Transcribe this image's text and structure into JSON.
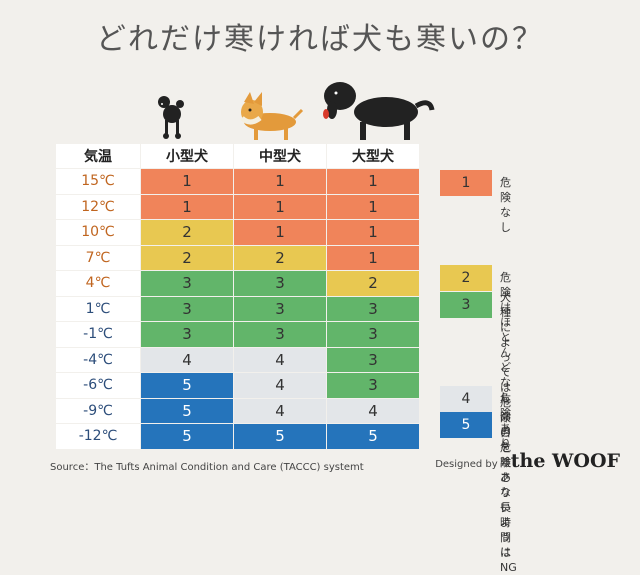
{
  "title": "どれだけ寒ければ犬も寒いの？",
  "colors": {
    "1": "#f0845a",
    "2": "#e8c851",
    "3": "#62b56a",
    "4": "#e3e6e9",
    "5": "#2574bb",
    "temp_warm": "#c0651f",
    "temp_cold": "#2c4d7a"
  },
  "chart_data": {
    "type": "table",
    "columns": [
      "気温",
      "小型犬",
      "中型犬",
      "大型犬"
    ],
    "rows": [
      {
        "temp": "15℃",
        "values": [
          1,
          1,
          1
        ]
      },
      {
        "temp": "12℃",
        "values": [
          1,
          1,
          1
        ]
      },
      {
        "temp": "10℃",
        "values": [
          2,
          1,
          1
        ]
      },
      {
        "temp": "7℃",
        "values": [
          2,
          2,
          1
        ]
      },
      {
        "temp": "4℃",
        "values": [
          3,
          3,
          2
        ]
      },
      {
        "temp": "1℃",
        "values": [
          3,
          3,
          3
        ]
      },
      {
        "temp": "-1℃",
        "values": [
          3,
          3,
          3
        ]
      },
      {
        "temp": "-4℃",
        "values": [
          4,
          4,
          3
        ]
      },
      {
        "temp": "-6℃",
        "values": [
          5,
          4,
          3
        ]
      },
      {
        "temp": "-9℃",
        "values": [
          5,
          4,
          4
        ]
      },
      {
        "temp": "-12℃",
        "values": [
          5,
          5,
          5
        ]
      }
    ]
  },
  "legend": [
    {
      "level": "1",
      "text": "危険なし"
    },
    {
      "level": "2",
      "text": "危険はほとんどなし"
    },
    {
      "level": "3",
      "text": "犬種によっては危険\n目を離さないように"
    },
    {
      "level": "4",
      "text": "危険あり"
    },
    {
      "level": "5",
      "text": "命の危険あり\n長時間は NG"
    }
  ],
  "source": "Source：The Tufts Animal Condition and Care (TACCC) systemt",
  "credit": {
    "by": "Designed by",
    "brand": "the WOOF"
  }
}
